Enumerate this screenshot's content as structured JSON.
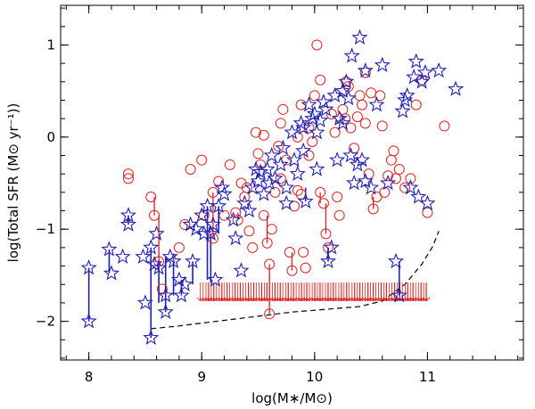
{
  "chart_data": {
    "type": "scatter",
    "title": "",
    "xlabel": "log(M∗/M⊙)",
    "ylabel": "log(Total SFR (M⊙ yr⁻¹))",
    "xlim": [
      7.75,
      11.85
    ],
    "ylim": [
      -2.42,
      1.43
    ],
    "x_ticks": [
      8,
      9,
      10,
      11
    ],
    "x_tick_labels": [
      "8",
      "9",
      "10",
      "11"
    ],
    "y_ticks": [
      -2,
      -1,
      0,
      1
    ],
    "y_tick_labels": [
      "−2",
      "−1",
      "0",
      "1"
    ],
    "x_minor_step": 0.2,
    "y_minor_step": 0.2,
    "grid": false,
    "legend": "none",
    "colors": {
      "stars": "#1e1eb4",
      "circles": "#e02020",
      "limits": "#e02020",
      "curve": "#000000",
      "axes": "#000000"
    },
    "series": [
      {
        "marker": "star",
        "color": "#1e1eb4",
        "points": [
          [
            8.0,
            -1.42
          ],
          [
            8.0,
            -2.0
          ],
          [
            8.18,
            -1.22
          ],
          [
            8.2,
            -1.48
          ],
          [
            8.3,
            -1.3
          ],
          [
            8.35,
            -0.85
          ],
          [
            8.35,
            -0.95
          ],
          [
            8.48,
            -1.3
          ],
          [
            8.5,
            -1.8
          ],
          [
            8.55,
            -2.18
          ],
          [
            8.55,
            -1.2
          ],
          [
            8.58,
            -1.38
          ],
          [
            8.6,
            -1.05
          ],
          [
            8.62,
            -1.42
          ],
          [
            8.68,
            -1.72
          ],
          [
            8.68,
            -1.9
          ],
          [
            8.72,
            -1.3
          ],
          [
            8.75,
            -1.35
          ],
          [
            8.8,
            -1.55
          ],
          [
            8.82,
            -1.72
          ],
          [
            8.85,
            -1.6
          ],
          [
            8.9,
            -0.95
          ],
          [
            8.92,
            -1.35
          ],
          [
            8.95,
            -1.0
          ],
          [
            9.0,
            -0.85
          ],
          [
            9.02,
            -1.05
          ],
          [
            9.05,
            -0.75
          ],
          [
            9.08,
            -1.05
          ],
          [
            9.1,
            -0.95
          ],
          [
            9.12,
            -1.55
          ],
          [
            9.15,
            -0.75
          ],
          [
            9.18,
            -0.55
          ],
          [
            9.2,
            -0.62
          ],
          [
            9.28,
            -0.9
          ],
          [
            9.3,
            -1.1
          ],
          [
            9.35,
            -1.45
          ],
          [
            9.38,
            -0.72
          ],
          [
            9.42,
            -0.8
          ],
          [
            9.45,
            -0.55
          ],
          [
            9.48,
            -0.35
          ],
          [
            9.5,
            -0.48
          ],
          [
            9.52,
            -0.38
          ],
          [
            9.55,
            -0.62
          ],
          [
            9.58,
            -0.35
          ],
          [
            9.6,
            -0.5
          ],
          [
            9.62,
            -0.2
          ],
          [
            9.65,
            -0.45
          ],
          [
            9.7,
            -0.3
          ],
          [
            9.72,
            -0.12
          ],
          [
            9.75,
            -0.55
          ],
          [
            9.75,
            -0.72
          ],
          [
            9.8,
            0.05
          ],
          [
            9.82,
            -0.25
          ],
          [
            9.85,
            -0.4
          ],
          [
            9.88,
            0.15
          ],
          [
            9.9,
            -0.15
          ],
          [
            9.92,
            -0.7
          ],
          [
            9.95,
            0.35
          ],
          [
            9.98,
            0.2
          ],
          [
            10.0,
            0.25
          ],
          [
            10.02,
            -0.35
          ],
          [
            10.05,
            0.18
          ],
          [
            10.08,
            0.38
          ],
          [
            10.1,
            0.3
          ],
          [
            10.12,
            -1.35
          ],
          [
            10.15,
            -1.2
          ],
          [
            10.18,
            0.45
          ],
          [
            10.2,
            -0.25
          ],
          [
            10.22,
            0.2
          ],
          [
            10.25,
            0.5
          ],
          [
            10.28,
            0.6
          ],
          [
            10.3,
            0.42
          ],
          [
            10.32,
            -0.2
          ],
          [
            10.35,
            -0.5
          ],
          [
            10.38,
            -0.3
          ],
          [
            10.4,
            1.08
          ],
          [
            10.42,
            -0.25
          ],
          [
            10.45,
            -0.48
          ],
          [
            10.5,
            -0.55
          ],
          [
            10.6,
            0.78
          ],
          [
            10.65,
            -0.5
          ],
          [
            10.72,
            -1.35
          ],
          [
            10.75,
            -1.72
          ],
          [
            10.78,
            0.28
          ],
          [
            10.8,
            0.4
          ],
          [
            10.82,
            0.45
          ],
          [
            10.85,
            -0.55
          ],
          [
            10.88,
            0.65
          ],
          [
            10.9,
            0.82
          ],
          [
            10.92,
            -0.65
          ],
          [
            10.95,
            0.6
          ],
          [
            10.98,
            0.7
          ],
          [
            11.0,
            -0.72
          ],
          [
            11.1,
            0.72
          ],
          [
            11.25,
            0.52
          ],
          [
            10.33,
            0.88
          ],
          [
            10.45,
            0.72
          ],
          [
            10.55,
            0.35
          ],
          [
            10.25,
            0.15
          ],
          [
            10.02,
            0.05
          ],
          [
            9.9,
            0.1
          ]
        ]
      },
      {
        "marker": "circle",
        "color": "#e02020",
        "points": [
          [
            8.35,
            -0.4
          ],
          [
            8.35,
            -0.45
          ],
          [
            8.55,
            -0.65
          ],
          [
            8.58,
            -0.85
          ],
          [
            8.62,
            -1.35
          ],
          [
            8.65,
            -1.65
          ],
          [
            8.8,
            -1.2
          ],
          [
            8.85,
            -0.95
          ],
          [
            8.9,
            -0.35
          ],
          [
            9.0,
            -0.25
          ],
          [
            9.02,
            -0.85
          ],
          [
            9.1,
            -0.6
          ],
          [
            9.1,
            -1.1
          ],
          [
            9.15,
            -0.48
          ],
          [
            9.2,
            -0.85
          ],
          [
            9.25,
            -0.3
          ],
          [
            9.3,
            -0.82
          ],
          [
            9.32,
            -0.9
          ],
          [
            9.35,
            -0.5
          ],
          [
            9.38,
            -0.65
          ],
          [
            9.4,
            -0.55
          ],
          [
            9.45,
            -1.2
          ],
          [
            9.48,
            0.05
          ],
          [
            9.5,
            -0.18
          ],
          [
            9.52,
            -0.3
          ],
          [
            9.55,
            -0.85
          ],
          [
            9.58,
            -1.15
          ],
          [
            9.6,
            -1.38
          ],
          [
            9.6,
            -1.92
          ],
          [
            9.62,
            -1.0
          ],
          [
            9.65,
            -0.6
          ],
          [
            9.68,
            -0.1
          ],
          [
            9.7,
            0.15
          ],
          [
            9.72,
            0.3
          ],
          [
            9.75,
            -0.25
          ],
          [
            9.78,
            -1.25
          ],
          [
            9.8,
            -1.45
          ],
          [
            9.82,
            -0.75
          ],
          [
            9.85,
            0.0
          ],
          [
            9.85,
            -0.58
          ],
          [
            9.88,
            -0.62
          ],
          [
            9.9,
            -1.25
          ],
          [
            9.92,
            -1.42
          ],
          [
            9.95,
            0.1
          ],
          [
            9.95,
            -0.2
          ],
          [
            9.98,
            -0.05
          ],
          [
            10.0,
            0.45
          ],
          [
            10.02,
            1.0
          ],
          [
            10.05,
            -0.6
          ],
          [
            10.08,
            -0.72
          ],
          [
            10.1,
            -1.05
          ],
          [
            10.12,
            -1.2
          ],
          [
            10.15,
            0.25
          ],
          [
            10.18,
            0.05
          ],
          [
            10.2,
            -0.65
          ],
          [
            10.22,
            -0.85
          ],
          [
            10.25,
            0.3
          ],
          [
            10.28,
            0.6
          ],
          [
            10.3,
            0.55
          ],
          [
            10.32,
            0.1
          ],
          [
            10.35,
            -0.12
          ],
          [
            10.38,
            0.22
          ],
          [
            10.4,
            0.45
          ],
          [
            10.42,
            0.35
          ],
          [
            10.45,
            0.15
          ],
          [
            10.48,
            -0.4
          ],
          [
            10.5,
            0.48
          ],
          [
            10.52,
            -0.78
          ],
          [
            10.55,
            -0.65
          ],
          [
            10.58,
            0.45
          ],
          [
            10.6,
            0.12
          ],
          [
            10.62,
            -0.6
          ],
          [
            10.65,
            -0.42
          ],
          [
            10.68,
            -0.25
          ],
          [
            10.7,
            -0.15
          ],
          [
            10.72,
            -0.45
          ],
          [
            10.75,
            -0.35
          ],
          [
            10.8,
            -0.55
          ],
          [
            10.85,
            -0.45
          ],
          [
            10.9,
            0.35
          ],
          [
            10.95,
            0.62
          ],
          [
            11.0,
            -0.82
          ],
          [
            11.15,
            0.12
          ],
          [
            9.55,
            0.02
          ],
          [
            9.42,
            -1.02
          ],
          [
            10.05,
            0.62
          ],
          [
            10.27,
            0.2
          ],
          [
            9.88,
            0.35
          ],
          [
            10.45,
            0.7
          ],
          [
            9.7,
            -0.45
          ]
        ]
      }
    ],
    "error_bars": {
      "stars": [
        [
          8.0,
          -1.42,
          -2.0
        ],
        [
          8.18,
          -1.22,
          -1.48
        ],
        [
          8.35,
          -0.85,
          -0.95
        ],
        [
          8.55,
          -1.2,
          -2.18
        ],
        [
          8.62,
          -1.38,
          -1.8
        ],
        [
          8.68,
          -1.3,
          -1.9
        ],
        [
          8.75,
          -1.35,
          -1.72
        ],
        [
          8.82,
          -1.55,
          -1.72
        ],
        [
          8.92,
          -1.35,
          -1.6
        ],
        [
          9.05,
          -0.75,
          -1.55
        ],
        [
          9.08,
          -1.05,
          -1.58
        ],
        [
          9.15,
          -0.75,
          -1.05
        ],
        [
          10.12,
          -1.2,
          -1.35
        ],
        [
          10.75,
          -1.35,
          -1.72
        ],
        [
          9.92,
          -0.55,
          -0.7
        ]
      ],
      "circles": [
        [
          8.58,
          -0.65,
          -0.85
        ],
        [
          8.62,
          -0.85,
          -1.35
        ],
        [
          9.1,
          -0.6,
          -1.1
        ],
        [
          9.32,
          -0.82,
          -0.9
        ],
        [
          9.6,
          -1.38,
          -1.92
        ],
        [
          9.58,
          -0.85,
          -1.15
        ],
        [
          9.8,
          -1.25,
          -1.45
        ],
        [
          10.05,
          -0.6,
          -0.72
        ],
        [
          10.1,
          -0.72,
          -1.05
        ],
        [
          10.52,
          -0.65,
          -0.78
        ]
      ]
    },
    "upper_limits": {
      "y_top": -1.58,
      "y_bottom": -1.78,
      "x_start": 9.0,
      "x_end": 11.0,
      "count": 120
    },
    "curve": {
      "style": "dashed",
      "points": [
        [
          8.55,
          -2.08
        ],
        [
          8.8,
          -2.05
        ],
        [
          9.0,
          -2.02
        ],
        [
          9.2,
          -1.99
        ],
        [
          9.4,
          -1.96
        ],
        [
          9.6,
          -1.93
        ],
        [
          9.8,
          -1.9
        ],
        [
          10.0,
          -1.88
        ],
        [
          10.2,
          -1.86
        ],
        [
          10.4,
          -1.84
        ],
        [
          10.6,
          -1.78
        ],
        [
          10.8,
          -1.6
        ],
        [
          10.95,
          -1.38
        ],
        [
          11.05,
          -1.18
        ],
        [
          11.1,
          -1.02
        ]
      ]
    }
  }
}
